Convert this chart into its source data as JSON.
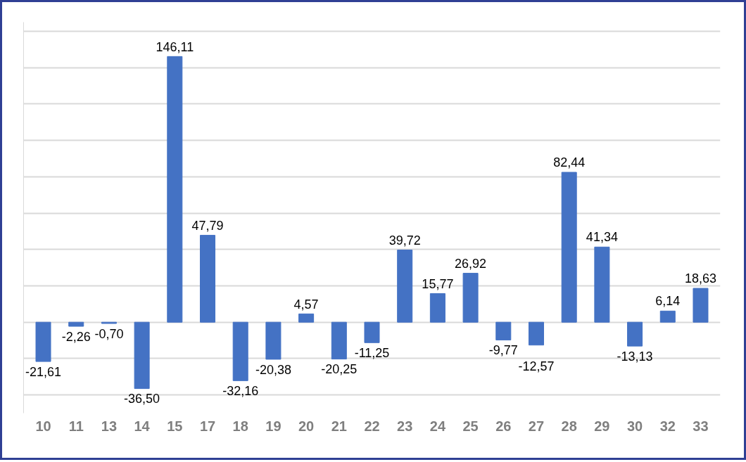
{
  "chart_data": {
    "type": "bar",
    "categories": [
      "10",
      "11",
      "13",
      "14",
      "15",
      "17",
      "18",
      "19",
      "20",
      "21",
      "22",
      "23",
      "24",
      "25",
      "26",
      "27",
      "28",
      "29",
      "30",
      "32",
      "33"
    ],
    "values": [
      -21.61,
      -2.26,
      -0.7,
      -36.5,
      146.11,
      47.79,
      -32.16,
      -20.38,
      4.57,
      -20.25,
      -11.25,
      39.72,
      15.77,
      26.92,
      -9.77,
      -12.57,
      82.44,
      41.34,
      -13.13,
      6.14,
      18.63
    ],
    "value_labels": [
      "-21,61",
      "-2,26",
      "-0,70",
      "-36,50",
      "146,11",
      "47,79",
      "-32,16",
      "-20,38",
      "4,57",
      "-20,25",
      "-11,25",
      "39,72",
      "15,77",
      "26,92",
      "-9,77",
      "-12,57",
      "82,44",
      "41,34",
      "-13,13",
      "6,14",
      "18,63"
    ],
    "color": "#4472c4",
    "ylim": [
      -50,
      165
    ],
    "yticks": [
      {
        "value": -40,
        "label": null
      },
      {
        "value": -20,
        "label": null
      },
      {
        "value": 0,
        "label": null
      },
      {
        "value": 20,
        "label": null
      },
      {
        "value": 40,
        "label": null
      },
      {
        "value": 60,
        "label": null
      },
      {
        "value": 80,
        "label": null
      },
      {
        "value": 100,
        "label": null
      },
      {
        "value": 120,
        "label": null
      },
      {
        "value": 140,
        "label": null
      },
      {
        "value": 160,
        "label": null
      }
    ],
    "grid": "y"
  }
}
